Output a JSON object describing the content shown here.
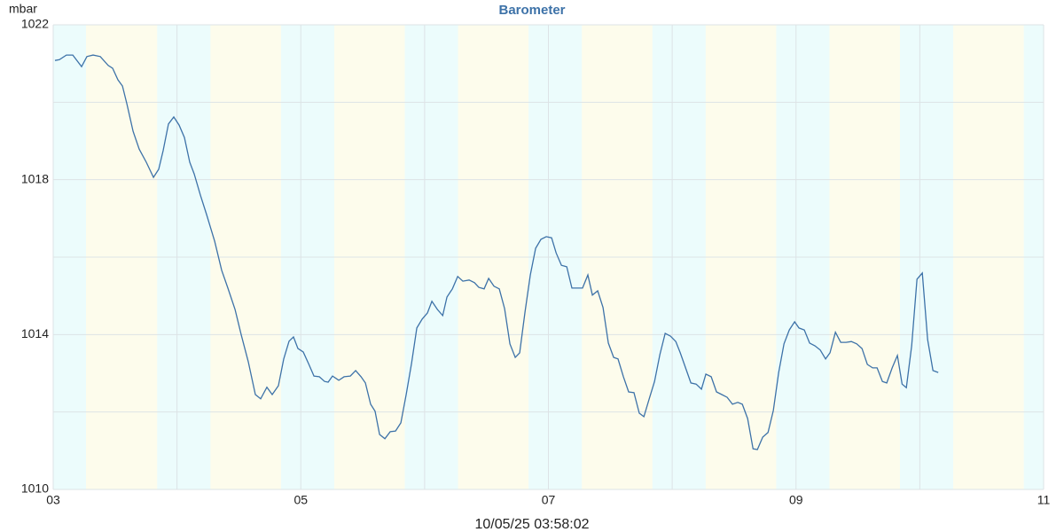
{
  "chart_data": {
    "type": "line",
    "title": "Barometer",
    "y_label": "mbar",
    "x_label": "10/05/25 03:58:02",
    "xlim": [
      3,
      11
    ],
    "ylim": [
      1010,
      1022
    ],
    "xticks": [
      {
        "value": 3,
        "label": "03"
      },
      {
        "value": 5,
        "label": "05"
      },
      {
        "value": 7,
        "label": "07"
      },
      {
        "value": 9,
        "label": "09"
      },
      {
        "value": 11,
        "label": "11"
      }
    ],
    "xminor": [
      4,
      6,
      8,
      10
    ],
    "yticks": [
      1010,
      1014,
      1018,
      1022
    ],
    "yminor": [
      1012,
      1016,
      1020
    ],
    "grid": true,
    "shading": {
      "night_color": "#ecfcfc",
      "day_color": "#fdfcec",
      "night": [
        [
          3,
          3.265
        ],
        [
          3.84,
          4.27
        ],
        [
          4.84,
          5.27
        ],
        [
          5.84,
          6.27
        ],
        [
          6.84,
          7.27
        ],
        [
          7.84,
          8.27
        ],
        [
          8.84,
          9.27
        ],
        [
          9.84,
          10.27
        ],
        [
          10.84,
          11
        ]
      ]
    },
    "x": [
      3.014,
      3.05,
      3.107,
      3.158,
      3.229,
      3.272,
      3.322,
      3.38,
      3.444,
      3.48,
      3.523,
      3.559,
      3.595,
      3.645,
      3.695,
      3.752,
      3.81,
      3.852,
      3.888,
      3.931,
      3.974,
      4.017,
      4.06,
      4.103,
      4.139,
      4.189,
      4.239,
      4.304,
      4.361,
      4.411,
      4.469,
      4.519,
      4.576,
      4.633,
      4.676,
      4.726,
      4.769,
      4.819,
      4.862,
      4.905,
      4.941,
      4.977,
      5.02,
      5.063,
      5.106,
      5.149,
      5.192,
      5.221,
      5.256,
      5.307,
      5.35,
      5.4,
      5.443,
      5.487,
      5.522,
      5.564,
      5.6,
      5.636,
      5.679,
      5.722,
      5.765,
      5.808,
      5.851,
      5.894,
      5.937,
      5.98,
      6.023,
      6.059,
      6.103,
      6.146,
      6.181,
      6.224,
      6.267,
      6.309,
      6.36,
      6.403,
      6.438,
      6.481,
      6.517,
      6.56,
      6.603,
      6.646,
      6.689,
      6.732,
      6.768,
      6.811,
      6.854,
      6.897,
      6.94,
      6.983,
      7.026,
      7.062,
      7.105,
      7.148,
      7.19,
      7.233,
      7.276,
      7.319,
      7.355,
      7.398,
      7.441,
      7.484,
      7.527,
      7.562,
      7.606,
      7.648,
      7.691,
      7.734,
      7.771,
      7.814,
      7.857,
      7.9,
      7.943,
      7.986,
      8.029,
      8.065,
      8.108,
      8.151,
      8.193,
      8.236,
      8.272,
      8.315,
      8.358,
      8.401,
      8.444,
      8.487,
      8.53,
      8.566,
      8.609,
      8.653,
      8.688,
      8.731,
      8.774,
      8.817,
      8.86,
      8.903,
      8.946,
      8.989,
      9.024,
      9.067,
      9.11,
      9.153,
      9.196,
      9.239,
      9.275,
      9.318,
      9.361,
      9.404,
      9.447,
      9.49,
      9.533,
      9.576,
      9.619,
      9.655,
      9.698,
      9.733,
      9.777,
      9.819,
      9.857,
      9.891,
      9.934,
      9.977,
      10.02,
      10.063,
      10.106,
      10.149
    ],
    "series": [
      {
        "color": "#3d72a8",
        "values": [
          1021.08,
          1021.1,
          1021.22,
          1021.22,
          1020.92,
          1021.18,
          1021.22,
          1021.18,
          1020.95,
          1020.88,
          1020.58,
          1020.42,
          1019.96,
          1019.25,
          1018.79,
          1018.45,
          1018.06,
          1018.27,
          1018.75,
          1019.44,
          1019.62,
          1019.41,
          1019.09,
          1018.45,
          1018.15,
          1017.6,
          1017.1,
          1016.41,
          1015.66,
          1015.2,
          1014.65,
          1013.99,
          1013.3,
          1012.45,
          1012.34,
          1012.64,
          1012.45,
          1012.68,
          1013.37,
          1013.83,
          1013.94,
          1013.64,
          1013.55,
          1013.25,
          1012.93,
          1012.91,
          1012.79,
          1012.77,
          1012.93,
          1012.82,
          1012.91,
          1012.93,
          1013.07,
          1012.91,
          1012.75,
          1012.2,
          1012.02,
          1011.42,
          1011.31,
          1011.49,
          1011.51,
          1011.72,
          1012.45,
          1013.25,
          1014.17,
          1014.4,
          1014.56,
          1014.86,
          1014.65,
          1014.49,
          1014.97,
          1015.18,
          1015.5,
          1015.38,
          1015.41,
          1015.34,
          1015.22,
          1015.18,
          1015.45,
          1015.25,
          1015.18,
          1014.67,
          1013.76,
          1013.41,
          1013.53,
          1014.58,
          1015.54,
          1016.23,
          1016.46,
          1016.53,
          1016.5,
          1016.11,
          1015.79,
          1015.75,
          1015.2,
          1015.2,
          1015.2,
          1015.54,
          1015.02,
          1015.13,
          1014.7,
          1013.78,
          1013.41,
          1013.37,
          1012.91,
          1012.52,
          1012.5,
          1011.97,
          1011.88,
          1012.34,
          1012.79,
          1013.48,
          1014.03,
          1013.96,
          1013.82,
          1013.53,
          1013.14,
          1012.75,
          1012.72,
          1012.59,
          1012.98,
          1012.91,
          1012.52,
          1012.45,
          1012.38,
          1012.2,
          1012.25,
          1012.2,
          1011.83,
          1011.05,
          1011.03,
          1011.35,
          1011.47,
          1012.04,
          1013.02,
          1013.76,
          1014.12,
          1014.33,
          1014.17,
          1014.12,
          1013.78,
          1013.71,
          1013.6,
          1013.37,
          1013.53,
          1014.06,
          1013.8,
          1013.8,
          1013.82,
          1013.76,
          1013.64,
          1013.23,
          1013.14,
          1013.14,
          1012.79,
          1012.75,
          1013.14,
          1013.46,
          1012.72,
          1012.63,
          1013.71,
          1015.43,
          1015.59,
          1013.87,
          1013.07,
          1013.02
        ]
      }
    ]
  }
}
